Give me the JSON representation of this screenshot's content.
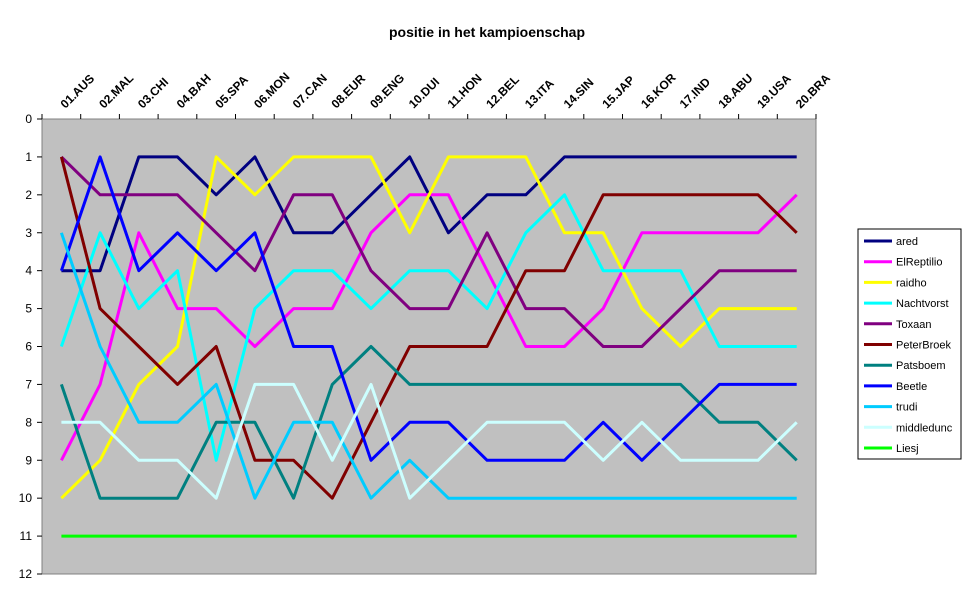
{
  "chart_data": {
    "type": "line",
    "title": "positie in het kampioenschap",
    "xlabel": "",
    "ylabel": "",
    "categories": [
      "01.AUS",
      "02.MAL",
      "03.CHI",
      "04.BAH",
      "05.SPA",
      "06.MON",
      "07.CAN",
      "08.EUR",
      "09.ENG",
      "10.DUI",
      "11.HON",
      "12.BEL",
      "13.ITA",
      "14.SIN",
      "15.JAP",
      "16.KOR",
      "17.IND",
      "18.ABU",
      "19.USA",
      "20.BRA"
    ],
    "ylim": [
      0,
      12
    ],
    "y_reversed": true,
    "y_ticks": [
      0,
      1,
      2,
      3,
      4,
      5,
      6,
      7,
      8,
      9,
      10,
      11,
      12
    ],
    "plot_background": "#c0c0c0",
    "grid": false,
    "legend_position": "right",
    "series": [
      {
        "name": "ared",
        "color": "#000080",
        "values": [
          4,
          4,
          1,
          1,
          2,
          1,
          3,
          3,
          2,
          1,
          3,
          2,
          2,
          1,
          1,
          1,
          1,
          1,
          1,
          1
        ]
      },
      {
        "name": "ElReptilio",
        "color": "#ff00ff",
        "values": [
          9,
          7,
          3,
          5,
          5,
          6,
          5,
          5,
          3,
          2,
          2,
          4,
          6,
          6,
          5,
          3,
          3,
          3,
          3,
          2
        ]
      },
      {
        "name": "raidho",
        "color": "#ffff00",
        "values": [
          10,
          9,
          7,
          6,
          1,
          2,
          1,
          1,
          1,
          3,
          1,
          1,
          1,
          3,
          3,
          5,
          6,
          5,
          5,
          5
        ]
      },
      {
        "name": "Nachtvorst",
        "color": "#00ffff",
        "values": [
          6,
          3,
          5,
          4,
          9,
          5,
          4,
          4,
          5,
          4,
          4,
          5,
          3,
          2,
          4,
          4,
          4,
          6,
          6,
          6
        ]
      },
      {
        "name": "Toxaan",
        "color": "#800080",
        "values": [
          1,
          2,
          2,
          2,
          3,
          4,
          2,
          2,
          4,
          5,
          5,
          3,
          5,
          5,
          6,
          6,
          5,
          4,
          4,
          4
        ]
      },
      {
        "name": "PeterBroek",
        "color": "#800000",
        "values": [
          1,
          5,
          6,
          7,
          6,
          9,
          9,
          10,
          8,
          6,
          6,
          6,
          4,
          4,
          2,
          2,
          2,
          2,
          2,
          3
        ]
      },
      {
        "name": "Patsboem",
        "color": "#008080",
        "values": [
          7,
          10,
          10,
          10,
          8,
          8,
          10,
          7,
          6,
          7,
          7,
          7,
          7,
          7,
          7,
          7,
          7,
          8,
          8,
          9
        ]
      },
      {
        "name": "Beetle",
        "color": "#0000ff",
        "values": [
          4,
          1,
          4,
          3,
          4,
          3,
          6,
          6,
          9,
          8,
          8,
          9,
          9,
          9,
          8,
          9,
          8,
          7,
          7,
          7
        ]
      },
      {
        "name": "trudi",
        "color": "#00ccff",
        "values": [
          3,
          6,
          8,
          8,
          7,
          10,
          8,
          8,
          10,
          9,
          10,
          10,
          10,
          10,
          10,
          10,
          10,
          10,
          10,
          10
        ]
      },
      {
        "name": "middledunc",
        "color": "#ccffff",
        "values": [
          8,
          8,
          9,
          9,
          10,
          7,
          7,
          9,
          7,
          10,
          9,
          8,
          8,
          8,
          9,
          8,
          9,
          9,
          9,
          8
        ]
      },
      {
        "name": "Liesj",
        "color": "#00ff00",
        "values": [
          11,
          11,
          11,
          11,
          11,
          11,
          11,
          11,
          11,
          11,
          11,
          11,
          11,
          11,
          11,
          11,
          11,
          11,
          11,
          11
        ]
      }
    ]
  }
}
